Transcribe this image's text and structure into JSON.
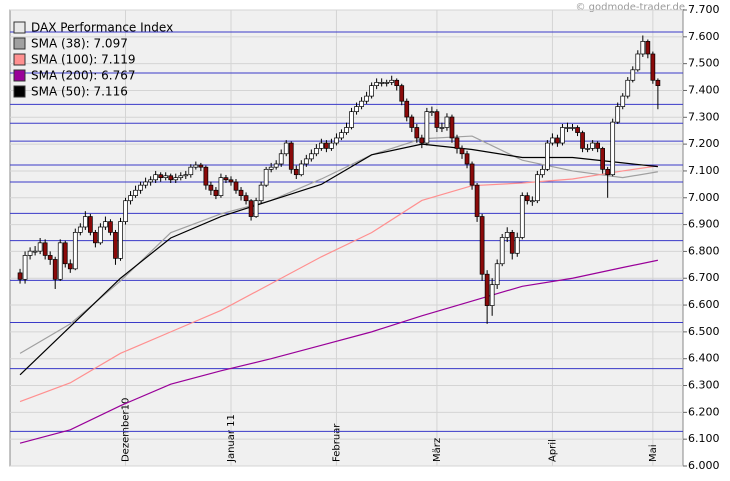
{
  "chart_data": {
    "type": "candlestick",
    "watermark": "© godmode-trader.de",
    "ylim": [
      6000,
      7700
    ],
    "yticks": [
      {
        "value": 6000,
        "label": "6.000"
      },
      {
        "value": 6100,
        "label": "6.100"
      },
      {
        "value": 6200,
        "label": "6.200"
      },
      {
        "value": 6300,
        "label": "6.300"
      },
      {
        "value": 6400,
        "label": "6.400"
      },
      {
        "value": 6500,
        "label": "6.500"
      },
      {
        "value": 6600,
        "label": "6.600"
      },
      {
        "value": 6700,
        "label": "6.700"
      },
      {
        "value": 6800,
        "label": "6.800"
      },
      {
        "value": 6900,
        "label": "6.900"
      },
      {
        "value": 7000,
        "label": "7.000"
      },
      {
        "value": 7100,
        "label": "7.100"
      },
      {
        "value": 7200,
        "label": "7.200"
      },
      {
        "value": 7300,
        "label": "7.300"
      },
      {
        "value": 7400,
        "label": "7.400"
      },
      {
        "value": 7500,
        "label": "7.500"
      },
      {
        "value": 7600,
        "label": "7.600"
      },
      {
        "value": 7700,
        "label": "7.700"
      }
    ],
    "xlim": [
      -2,
      132
    ],
    "xticks": [
      {
        "value": 21,
        "label": "Dezember10"
      },
      {
        "value": 42,
        "label": "Januar 11"
      },
      {
        "value": 63,
        "label": "Februar"
      },
      {
        "value": 83,
        "label": "März"
      },
      {
        "value": 106,
        "label": "April"
      },
      {
        "value": 126,
        "label": "Mai"
      }
    ],
    "grid": true,
    "levels": [
      7618,
      7465,
      7348,
      7278,
      7211,
      7122,
      7059,
      6942,
      6840,
      6692,
      6535,
      6363,
      6129
    ],
    "levels_color": "#3a3ac8",
    "up_color": "#ffffff",
    "down_color": "#8b0a0a",
    "ohlc": {
      "name": "DAX Performance Index",
      "color": "#e8e8e8",
      "open": [
        6720,
        6696,
        6785,
        6801,
        6801,
        6832,
        6785,
        6770,
        6696,
        6832,
        6754,
        6735,
        6871,
        6891,
        6930,
        6871,
        6832,
        6891,
        6911,
        6871,
        6774,
        6911,
        6989,
        7008,
        7028,
        7047,
        7059,
        7067,
        7086,
        7075,
        7082,
        7067,
        7075,
        7082,
        7086,
        7114,
        7122,
        7114,
        7047,
        7028,
        7008,
        7075,
        7067,
        7059,
        7028,
        7008,
        6989,
        6930,
        6989,
        7047,
        7106,
        7114,
        7126,
        7164,
        7204,
        7106,
        7086,
        7126,
        7145,
        7164,
        7184,
        7204,
        7184,
        7204,
        7223,
        7243,
        7262,
        7321,
        7340,
        7360,
        7379,
        7418,
        7430,
        7430,
        7430,
        7438,
        7418,
        7360,
        7301,
        7262,
        7223,
        7204,
        7321,
        7321,
        7262,
        7262,
        7301,
        7223,
        7184,
        7164,
        7126,
        7047,
        6930,
        6715,
        6598,
        6676,
        6754,
        6852,
        6871,
        6793,
        6852,
        7008,
        6989,
        6989,
        7086,
        7106,
        7204,
        7223,
        7204,
        7262,
        7262,
        7262,
        7243,
        7184,
        7184,
        7204,
        7184,
        7106,
        7086,
        7282,
        7340,
        7379,
        7438,
        7477,
        7536,
        7583,
        7536,
        7438
      ],
      "high": [
        6735,
        6800,
        6815,
        6820,
        6850,
        6845,
        6800,
        6780,
        6845,
        6840,
        6770,
        6885,
        6905,
        6950,
        6940,
        6880,
        6905,
        6930,
        6920,
        6880,
        6925,
        7000,
        7025,
        7045,
        7060,
        7075,
        7080,
        7100,
        7095,
        7095,
        7090,
        7090,
        7095,
        7100,
        7125,
        7135,
        7130,
        7120,
        7060,
        7040,
        7090,
        7085,
        7080,
        7070,
        7040,
        7020,
        6995,
        7000,
        7060,
        7115,
        7130,
        7140,
        7180,
        7215,
        7210,
        7120,
        7140,
        7160,
        7180,
        7200,
        7220,
        7215,
        7220,
        7240,
        7255,
        7280,
        7335,
        7355,
        7375,
        7395,
        7430,
        7445,
        7445,
        7440,
        7455,
        7445,
        7425,
        7370,
        7310,
        7275,
        7235,
        7335,
        7340,
        7330,
        7280,
        7315,
        7310,
        7235,
        7195,
        7175,
        7135,
        7055,
        6940,
        6730,
        6700,
        6770,
        6865,
        6890,
        6880,
        6870,
        7020,
        7020,
        7005,
        7100,
        7120,
        7215,
        7240,
        7235,
        7275,
        7280,
        7275,
        7270,
        7250,
        7200,
        7215,
        7210,
        7190,
        7115,
        7295,
        7355,
        7390,
        7450,
        7490,
        7550,
        7605,
        7590,
        7545,
        7445
      ],
      "low": [
        6680,
        6680,
        6770,
        6785,
        6790,
        6770,
        6750,
        6660,
        6690,
        6740,
        6720,
        6730,
        6860,
        6880,
        6860,
        6815,
        6825,
        6880,
        6860,
        6750,
        6765,
        6900,
        6975,
        7000,
        7015,
        7035,
        7045,
        7055,
        7060,
        7065,
        7055,
        7055,
        7065,
        7070,
        7075,
        7105,
        7100,
        7030,
        7010,
        6995,
        7000,
        7055,
        7045,
        7015,
        6990,
        6975,
        6915,
        6925,
        6980,
        7040,
        7095,
        7105,
        7115,
        7155,
        7090,
        7070,
        7080,
        7115,
        7135,
        7155,
        7175,
        7170,
        7175,
        7195,
        7215,
        7235,
        7255,
        7310,
        7330,
        7350,
        7370,
        7405,
        7415,
        7415,
        7420,
        7400,
        7345,
        7285,
        7245,
        7205,
        7185,
        7195,
        7305,
        7245,
        7245,
        7250,
        7205,
        7165,
        7145,
        7110,
        7030,
        6910,
        6690,
        6530,
        6560,
        6660,
        6745,
        6835,
        6770,
        6780,
        6845,
        6975,
        6970,
        6980,
        7075,
        7100,
        7195,
        7190,
        7195,
        7245,
        7250,
        7230,
        7170,
        7170,
        7175,
        7170,
        7090,
        7000,
        7080,
        7275,
        7330,
        7370,
        7430,
        7470,
        7525,
        7520,
        7425,
        7330
      ],
      "close": [
        6696,
        6785,
        6801,
        6801,
        6832,
        6785,
        6770,
        6696,
        6832,
        6754,
        6735,
        6871,
        6891,
        6930,
        6871,
        6832,
        6891,
        6911,
        6871,
        6774,
        6911,
        6989,
        7008,
        7028,
        7047,
        7059,
        7067,
        7086,
        7075,
        7082,
        7067,
        7075,
        7082,
        7086,
        7114,
        7122,
        7114,
        7047,
        7028,
        7008,
        7075,
        7067,
        7059,
        7028,
        7008,
        6989,
        6930,
        6989,
        7047,
        7106,
        7114,
        7126,
        7164,
        7204,
        7106,
        7086,
        7126,
        7145,
        7164,
        7184,
        7204,
        7184,
        7204,
        7223,
        7243,
        7262,
        7321,
        7340,
        7360,
        7379,
        7418,
        7430,
        7430,
        7430,
        7438,
        7418,
        7360,
        7301,
        7262,
        7223,
        7204,
        7321,
        7321,
        7262,
        7262,
        7301,
        7223,
        7184,
        7164,
        7126,
        7047,
        6930,
        6715,
        6598,
        6676,
        6754,
        6852,
        6871,
        6793,
        6852,
        7008,
        6989,
        6989,
        7086,
        7106,
        7204,
        7223,
        7204,
        7262,
        7262,
        7262,
        7243,
        7184,
        7184,
        7204,
        7184,
        7106,
        7086,
        7282,
        7340,
        7379,
        7438,
        7477,
        7536,
        7583,
        7536,
        7438,
        7418
      ]
    },
    "series": [
      {
        "name": "SMA (38): 7.097",
        "color": "#a0a0a0",
        "x": [
          0,
          10,
          20,
          30,
          40,
          50,
          60,
          70,
          80,
          90,
          100,
          110,
          120,
          127
        ],
        "values": [
          6420,
          6530,
          6690,
          6870,
          6940,
          6990,
          7070,
          7160,
          7220,
          7230,
          7140,
          7100,
          7075,
          7097
        ]
      },
      {
        "name": "SMA (100): 7.119",
        "color": "#ff9090",
        "x": [
          0,
          10,
          20,
          30,
          40,
          50,
          60,
          70,
          80,
          90,
          100,
          110,
          120,
          127
        ],
        "values": [
          6240,
          6310,
          6420,
          6500,
          6580,
          6680,
          6780,
          6870,
          6990,
          7045,
          7055,
          7070,
          7100,
          7119
        ]
      },
      {
        "name": "SMA (200): 6.767",
        "color": "#990099",
        "x": [
          0,
          10,
          20,
          30,
          40,
          50,
          60,
          70,
          80,
          90,
          100,
          110,
          120,
          127
        ],
        "values": [
          6085,
          6135,
          6225,
          6305,
          6355,
          6400,
          6450,
          6500,
          6560,
          6615,
          6670,
          6700,
          6740,
          6767
        ]
      },
      {
        "name": "SMA (50): 7.116",
        "color": "#000000",
        "x": [
          0,
          10,
          20,
          30,
          40,
          50,
          60,
          70,
          80,
          90,
          100,
          110,
          120,
          127
        ],
        "values": [
          6340,
          6520,
          6700,
          6850,
          6930,
          6990,
          7050,
          7160,
          7200,
          7180,
          7150,
          7150,
          7130,
          7116
        ]
      }
    ]
  }
}
